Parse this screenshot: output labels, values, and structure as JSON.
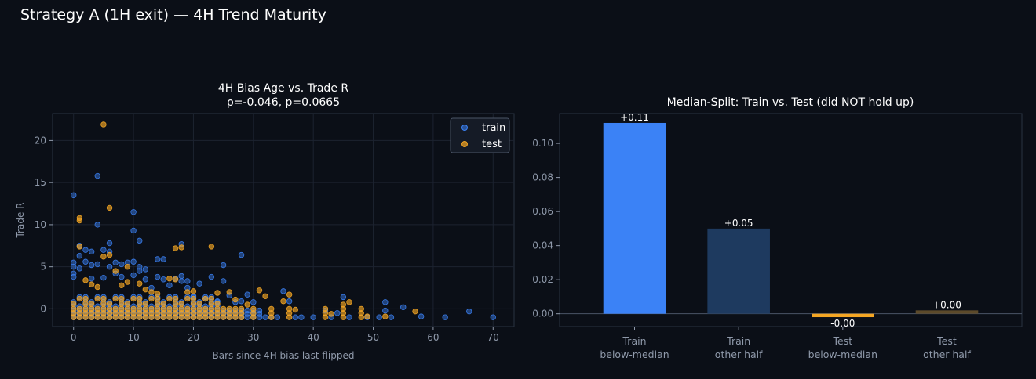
{
  "figure": {
    "suptitle": "Strategy A (1H exit) — 4H Trend Maturity"
  },
  "colors": {
    "background": "#0b0f17",
    "grid": "#1c2330",
    "axis": "#2a3342",
    "tick_text": "#8f99aa",
    "title_text": "#ffffff",
    "train": "#3b82f6",
    "test": "#f5a623",
    "train_dark": "#1e3a5f",
    "test_dark": "#5c4a2a"
  },
  "chart_data": [
    {
      "type": "scatter",
      "title_line1": "4H Bias Age vs. Trade R",
      "title_line2": "ρ=-0.046, p=0.0665",
      "xlabel": "Bars since 4H bias last flipped",
      "ylabel": "Trade R",
      "xlim": [
        -3.5,
        73.5
      ],
      "ylim": [
        -2.1,
        23.2
      ],
      "xticks": [
        "0",
        "10",
        "20",
        "30",
        "40",
        "50",
        "60",
        "70"
      ],
      "yticks": [
        "0",
        "5",
        "10",
        "15",
        "20"
      ],
      "grid": true,
      "legend_position": "upper right",
      "series": [
        {
          "name": "train",
          "color": "#3b82f6",
          "points": [
            [
              0,
              13.5
            ],
            [
              0,
              5.5
            ],
            [
              0,
              5.0
            ],
            [
              0,
              4.2
            ],
            [
              0,
              3.8
            ],
            [
              1,
              7.5
            ],
            [
              1,
              6.3
            ],
            [
              1,
              4.8
            ],
            [
              2,
              7.0
            ],
            [
              2,
              5.6
            ],
            [
              3,
              6.8
            ],
            [
              3,
              5.2
            ],
            [
              3,
              3.6
            ],
            [
              4,
              15.8
            ],
            [
              4,
              10.0
            ],
            [
              4,
              5.3
            ],
            [
              5,
              7.0
            ],
            [
              5,
              3.7
            ],
            [
              6,
              7.8
            ],
            [
              6,
              5.0
            ],
            [
              6,
              6.8
            ],
            [
              7,
              5.5
            ],
            [
              7,
              4.2
            ],
            [
              8,
              5.3
            ],
            [
              8,
              3.8
            ],
            [
              9,
              5.5
            ],
            [
              10,
              11.5
            ],
            [
              10,
              9.3
            ],
            [
              10,
              5.6
            ],
            [
              10,
              4.0
            ],
            [
              11,
              8.1
            ],
            [
              11,
              5.0
            ],
            [
              11,
              4.5
            ],
            [
              12,
              3.5
            ],
            [
              12,
              4.7
            ],
            [
              13,
              2.5
            ],
            [
              14,
              5.9
            ],
            [
              14,
              3.8
            ],
            [
              15,
              5.9
            ],
            [
              15,
              3.5
            ],
            [
              16,
              2.8
            ],
            [
              17,
              3.6
            ],
            [
              18,
              7.7
            ],
            [
              18,
              3.3
            ],
            [
              18,
              3.9
            ],
            [
              19,
              2.5
            ],
            [
              19,
              3.3
            ],
            [
              20,
              1.5
            ],
            [
              21,
              3.0
            ],
            [
              22,
              1.2
            ],
            [
              23,
              3.8
            ],
            [
              24,
              0.9
            ],
            [
              25,
              5.2
            ],
            [
              25,
              3.3
            ],
            [
              26,
              1.6
            ],
            [
              27,
              0.8
            ],
            [
              28,
              6.4
            ],
            [
              28,
              0.9
            ],
            [
              29,
              1.7
            ],
            [
              30,
              0.8
            ],
            [
              32,
              -1.0
            ],
            [
              33,
              -1.0
            ],
            [
              34,
              -1.0
            ],
            [
              35,
              2.1
            ],
            [
              36,
              0.9
            ],
            [
              37,
              -1.0
            ],
            [
              38,
              -1.0
            ],
            [
              40,
              -1.0
            ],
            [
              42,
              -0.2
            ],
            [
              43,
              -1.0
            ],
            [
              44,
              -0.5
            ],
            [
              45,
              1.4
            ],
            [
              46,
              -1.0
            ],
            [
              49,
              -1.0
            ],
            [
              51,
              -1.0
            ],
            [
              52,
              0.8
            ],
            [
              52,
              -0.2
            ],
            [
              53,
              -1.0
            ],
            [
              55,
              0.2
            ],
            [
              58,
              -0.9
            ],
            [
              62,
              -1.0
            ],
            [
              66,
              -0.3
            ],
            [
              70,
              -1.0
            ]
          ],
          "floor_points_x": [
            0,
            1,
            2,
            3,
            4,
            5,
            6,
            7,
            8,
            9,
            10,
            11,
            12,
            13,
            14,
            15,
            16,
            17,
            18,
            19,
            20,
            21,
            22,
            23,
            24,
            25,
            26,
            27,
            28,
            29,
            30,
            31
          ]
        },
        {
          "name": "test",
          "color": "#f5a623",
          "points": [
            [
              5,
              21.9
            ],
            [
              1,
              10.8
            ],
            [
              1,
              10.5
            ],
            [
              6,
              12.0
            ],
            [
              1,
              7.4
            ],
            [
              5,
              6.2
            ],
            [
              6,
              6.4
            ],
            [
              7,
              4.5
            ],
            [
              9,
              5.0
            ],
            [
              9,
              3.2
            ],
            [
              11,
              3.0
            ],
            [
              12,
              2.3
            ],
            [
              13,
              2.0
            ],
            [
              14,
              1.8
            ],
            [
              16,
              3.6
            ],
            [
              17,
              7.2
            ],
            [
              18,
              7.3
            ],
            [
              17,
              3.5
            ],
            [
              19,
              2.0
            ],
            [
              20,
              2.1
            ],
            [
              23,
              7.4
            ],
            [
              24,
              1.9
            ],
            [
              26,
              2.0
            ],
            [
              27,
              1.1
            ],
            [
              29,
              0.5
            ],
            [
              31,
              2.2
            ],
            [
              32,
              1.5
            ],
            [
              35,
              0.9
            ],
            [
              36,
              1.7
            ],
            [
              37,
              -0.1
            ],
            [
              43,
              -0.6
            ],
            [
              45,
              0.5
            ],
            [
              46,
              0.8
            ],
            [
              49,
              -0.9
            ],
            [
              52,
              -0.9
            ],
            [
              57,
              -0.3
            ],
            [
              2,
              3.4
            ],
            [
              3,
              2.9
            ],
            [
              4,
              2.6
            ],
            [
              8,
              2.8
            ]
          ],
          "floor_points_x": [
            0,
            1,
            2,
            3,
            4,
            5,
            6,
            7,
            8,
            9,
            10,
            11,
            12,
            13,
            14,
            15,
            16,
            17,
            18,
            19,
            20,
            21,
            22,
            23,
            24,
            25,
            26,
            27,
            28,
            30,
            33,
            36,
            42,
            45,
            48
          ]
        }
      ]
    },
    {
      "type": "bar",
      "title": "Median-Split: Train vs. Test (did NOT hold up)",
      "categories": [
        "Train\nbelow-median",
        "Train\nother half",
        "Test\nbelow-median",
        "Test\nother half"
      ],
      "values": [
        0.112,
        0.05,
        -0.002,
        0.002
      ],
      "value_labels": [
        "+0.11",
        "+0.05",
        "-0.00",
        "+0.00"
      ],
      "bar_colors": [
        "#3b82f6",
        "#1e3a5f",
        "#f5a623",
        "#5c4a2a"
      ],
      "ylim": [
        -0.0075,
        0.1175
      ],
      "yticks": [
        "0.00",
        "0.02",
        "0.04",
        "0.06",
        "0.08",
        "0.10"
      ],
      "grid": false
    }
  ]
}
